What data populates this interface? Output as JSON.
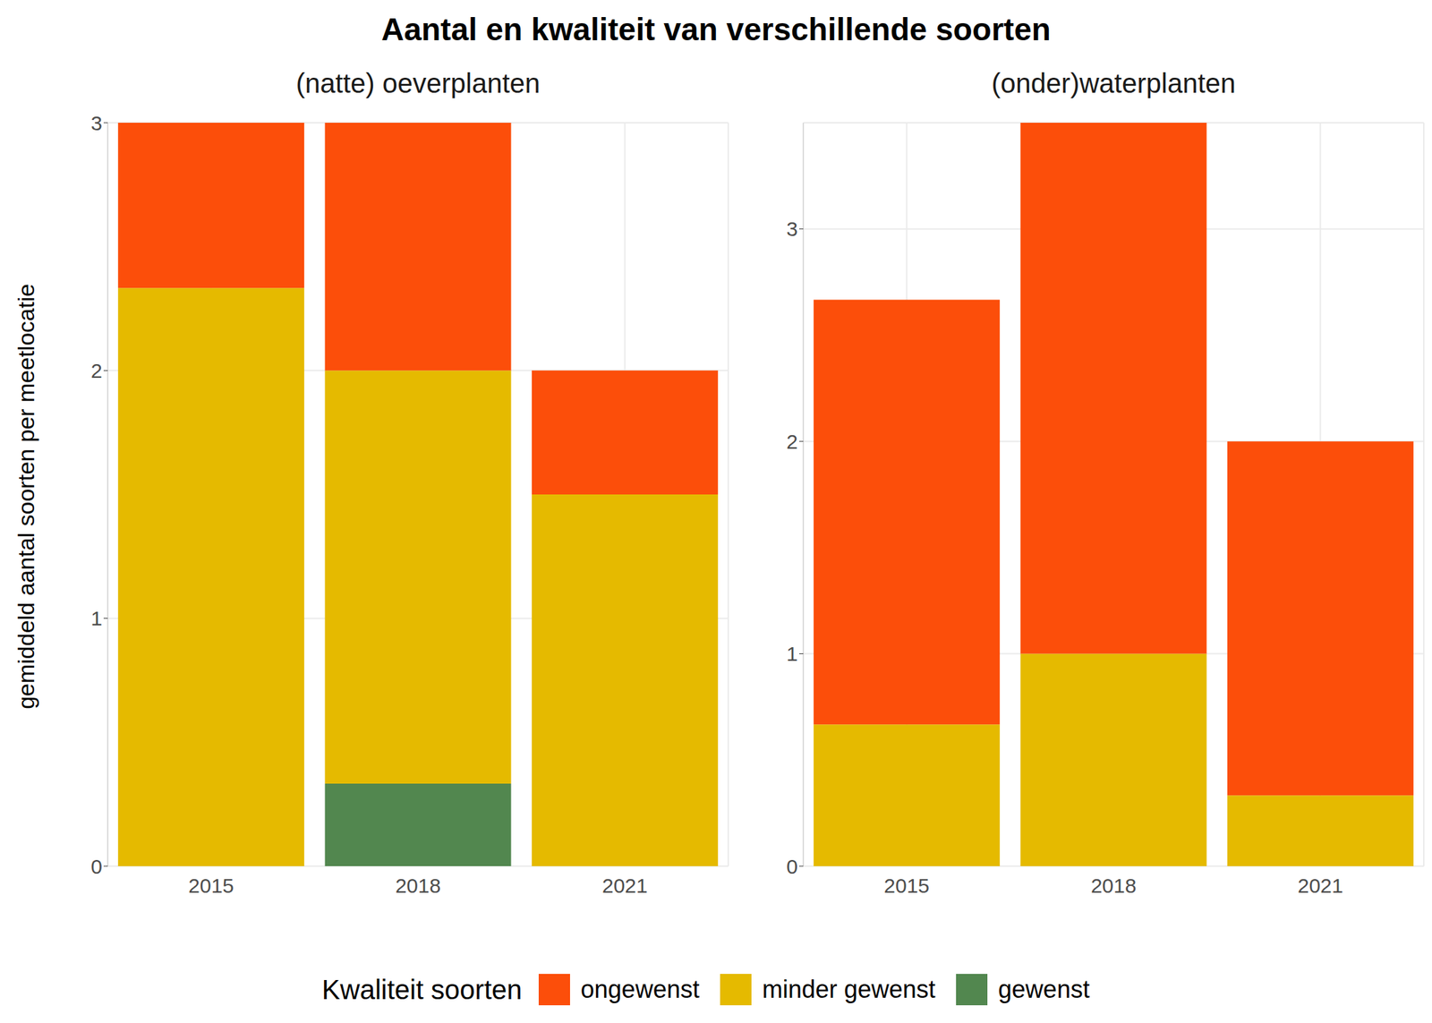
{
  "title": "Aantal en kwaliteit van verschillende soorten",
  "y_label": "gemiddeld aantal soorten per meetlocatie",
  "legend_title": "Kwaliteit soorten",
  "legend": "bottom",
  "chart_data": [
    {
      "type": "bar",
      "title": "(natte) oeverplanten",
      "categories": [
        "2015",
        "2018",
        "2021"
      ],
      "stacked": true,
      "grid": true,
      "ylim": [
        0,
        3
      ],
      "yticks": [
        0,
        1,
        2,
        3
      ],
      "series": [
        {
          "name": "ongewenst",
          "color": "#fc4e0a",
          "values": [
            0.667,
            1.0,
            0.5
          ]
        },
        {
          "name": "minder gewenst",
          "color": "#e5ba00",
          "values": [
            2.333,
            1.667,
            1.5
          ]
        },
        {
          "name": "gewenst",
          "color": "#52874f",
          "values": [
            0,
            0.333,
            0
          ]
        }
      ]
    },
    {
      "type": "bar",
      "title": "(onder)waterplanten",
      "categories": [
        "2015",
        "2018",
        "2021"
      ],
      "stacked": true,
      "grid": true,
      "ylim": [
        0,
        3.5
      ],
      "yticks": [
        0,
        1,
        2,
        3
      ],
      "series": [
        {
          "name": "ongewenst",
          "color": "#fc4e0a",
          "values": [
            2.0,
            2.5,
            1.667
          ]
        },
        {
          "name": "minder gewenst",
          "color": "#e5ba00",
          "values": [
            0.667,
            1.0,
            0.333
          ]
        },
        {
          "name": "gewenst",
          "color": "#52874f",
          "values": [
            0,
            0,
            0
          ]
        }
      ]
    }
  ]
}
